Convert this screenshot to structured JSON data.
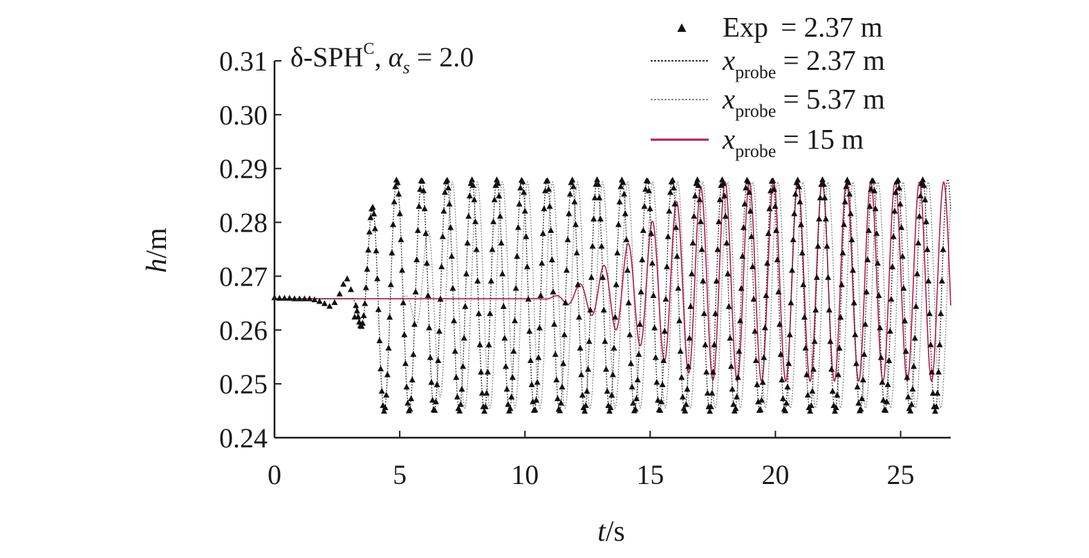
{
  "chart_data": {
    "type": "line",
    "title": "δ-SPH",
    "title_superscript": "C",
    "title_param_symbol": "α",
    "title_param_subscript": "s",
    "title_param_value": "= 2.0",
    "xlabel_var": "t",
    "xlabel_unit": "/s",
    "ylabel_var": "h",
    "ylabel_unit": "/m",
    "xlim": [
      0,
      27
    ],
    "ylim": [
      0.24,
      0.31
    ],
    "xticks": [
      "0",
      "5",
      "10",
      "15",
      "20",
      "25"
    ],
    "yticks": [
      "0.24",
      "0.25",
      "0.26",
      "0.27",
      "0.28",
      "0.29",
      "0.30",
      "0.31"
    ],
    "grid": false,
    "legend_position": "top-right",
    "legend": [
      {
        "symbol": "triangle",
        "main": "Exp",
        "sub": "",
        "value": " = 2.37 m",
        "color": "#111111"
      },
      {
        "symbol": "dotted-line",
        "main": "x",
        "sub": "probe",
        "value": " = 2.37 m",
        "color": "#333333"
      },
      {
        "symbol": "dotted-line",
        "main": "x",
        "sub": "probe",
        "value": " = 5.37 m",
        "color": "#8a8a8a"
      },
      {
        "symbol": "solid-line",
        "main": "x",
        "sub": "probe",
        "value": " = 15 m",
        "color": "#b8144a"
      }
    ],
    "series": [
      {
        "name": "Exp = 2.37 m",
        "marker": "triangle",
        "model": {
          "baseline": 0.266,
          "mean": 0.2665,
          "period": 1.0,
          "amplitude": 0.0215,
          "phase": 4.88,
          "start": 3.0,
          "ramp": 1.3,
          "x_end": 26.7
        },
        "points_early": [
          [
            0.0,
            0.2661
          ],
          [
            0.2,
            0.266
          ],
          [
            0.4,
            0.266
          ],
          [
            0.6,
            0.266
          ],
          [
            0.8,
            0.2659
          ],
          [
            1.0,
            0.2659
          ],
          [
            1.2,
            0.2659
          ],
          [
            1.4,
            0.2659
          ],
          [
            1.6,
            0.2657
          ],
          [
            1.8,
            0.2654
          ],
          [
            2.0,
            0.265
          ],
          [
            2.2,
            0.2645
          ],
          [
            2.4,
            0.2652
          ],
          [
            2.6,
            0.2668
          ],
          [
            2.75,
            0.2686
          ],
          [
            2.9,
            0.2696
          ],
          [
            3.05,
            0.2676
          ],
          [
            3.2,
            0.2625
          ]
        ]
      },
      {
        "name": "x_probe = 2.37 m",
        "style": "dotted",
        "model": {
          "baseline": 0.2658,
          "mean": 0.2665,
          "period": 1.0,
          "amplitude": 0.0215,
          "phase": 4.88,
          "start": 3.0,
          "ramp": 1.3,
          "x_end": 27.0,
          "first_peaks": [
            [
              2.85,
              0.2735
            ],
            [
              3.9,
              0.287
            ],
            [
              4.85,
              0.2915
            ],
            [
              9.85,
              0.2915
            ]
          ],
          "first_troughs": [
            [
              3.35,
              0.2535
            ],
            [
              4.35,
              0.243
            ]
          ]
        }
      },
      {
        "name": "x_probe = 5.37 m",
        "style": "dotted",
        "model": {
          "baseline": 0.2658,
          "mean": 0.2665,
          "period": 1.0,
          "amplitude": 0.021,
          "phase": 5.1,
          "start": 5.0,
          "ramp": 2.0,
          "x_end": 27.0
        }
      },
      {
        "name": "x_probe = 15 m",
        "style": "solid",
        "model": {
          "baseline": 0.2658,
          "mean": 0.269,
          "period": 0.97,
          "amplitude": 0.0185,
          "phase": 11.2,
          "start": 10.5,
          "ramp": 7.5,
          "x_end": 27.0
        }
      }
    ]
  }
}
